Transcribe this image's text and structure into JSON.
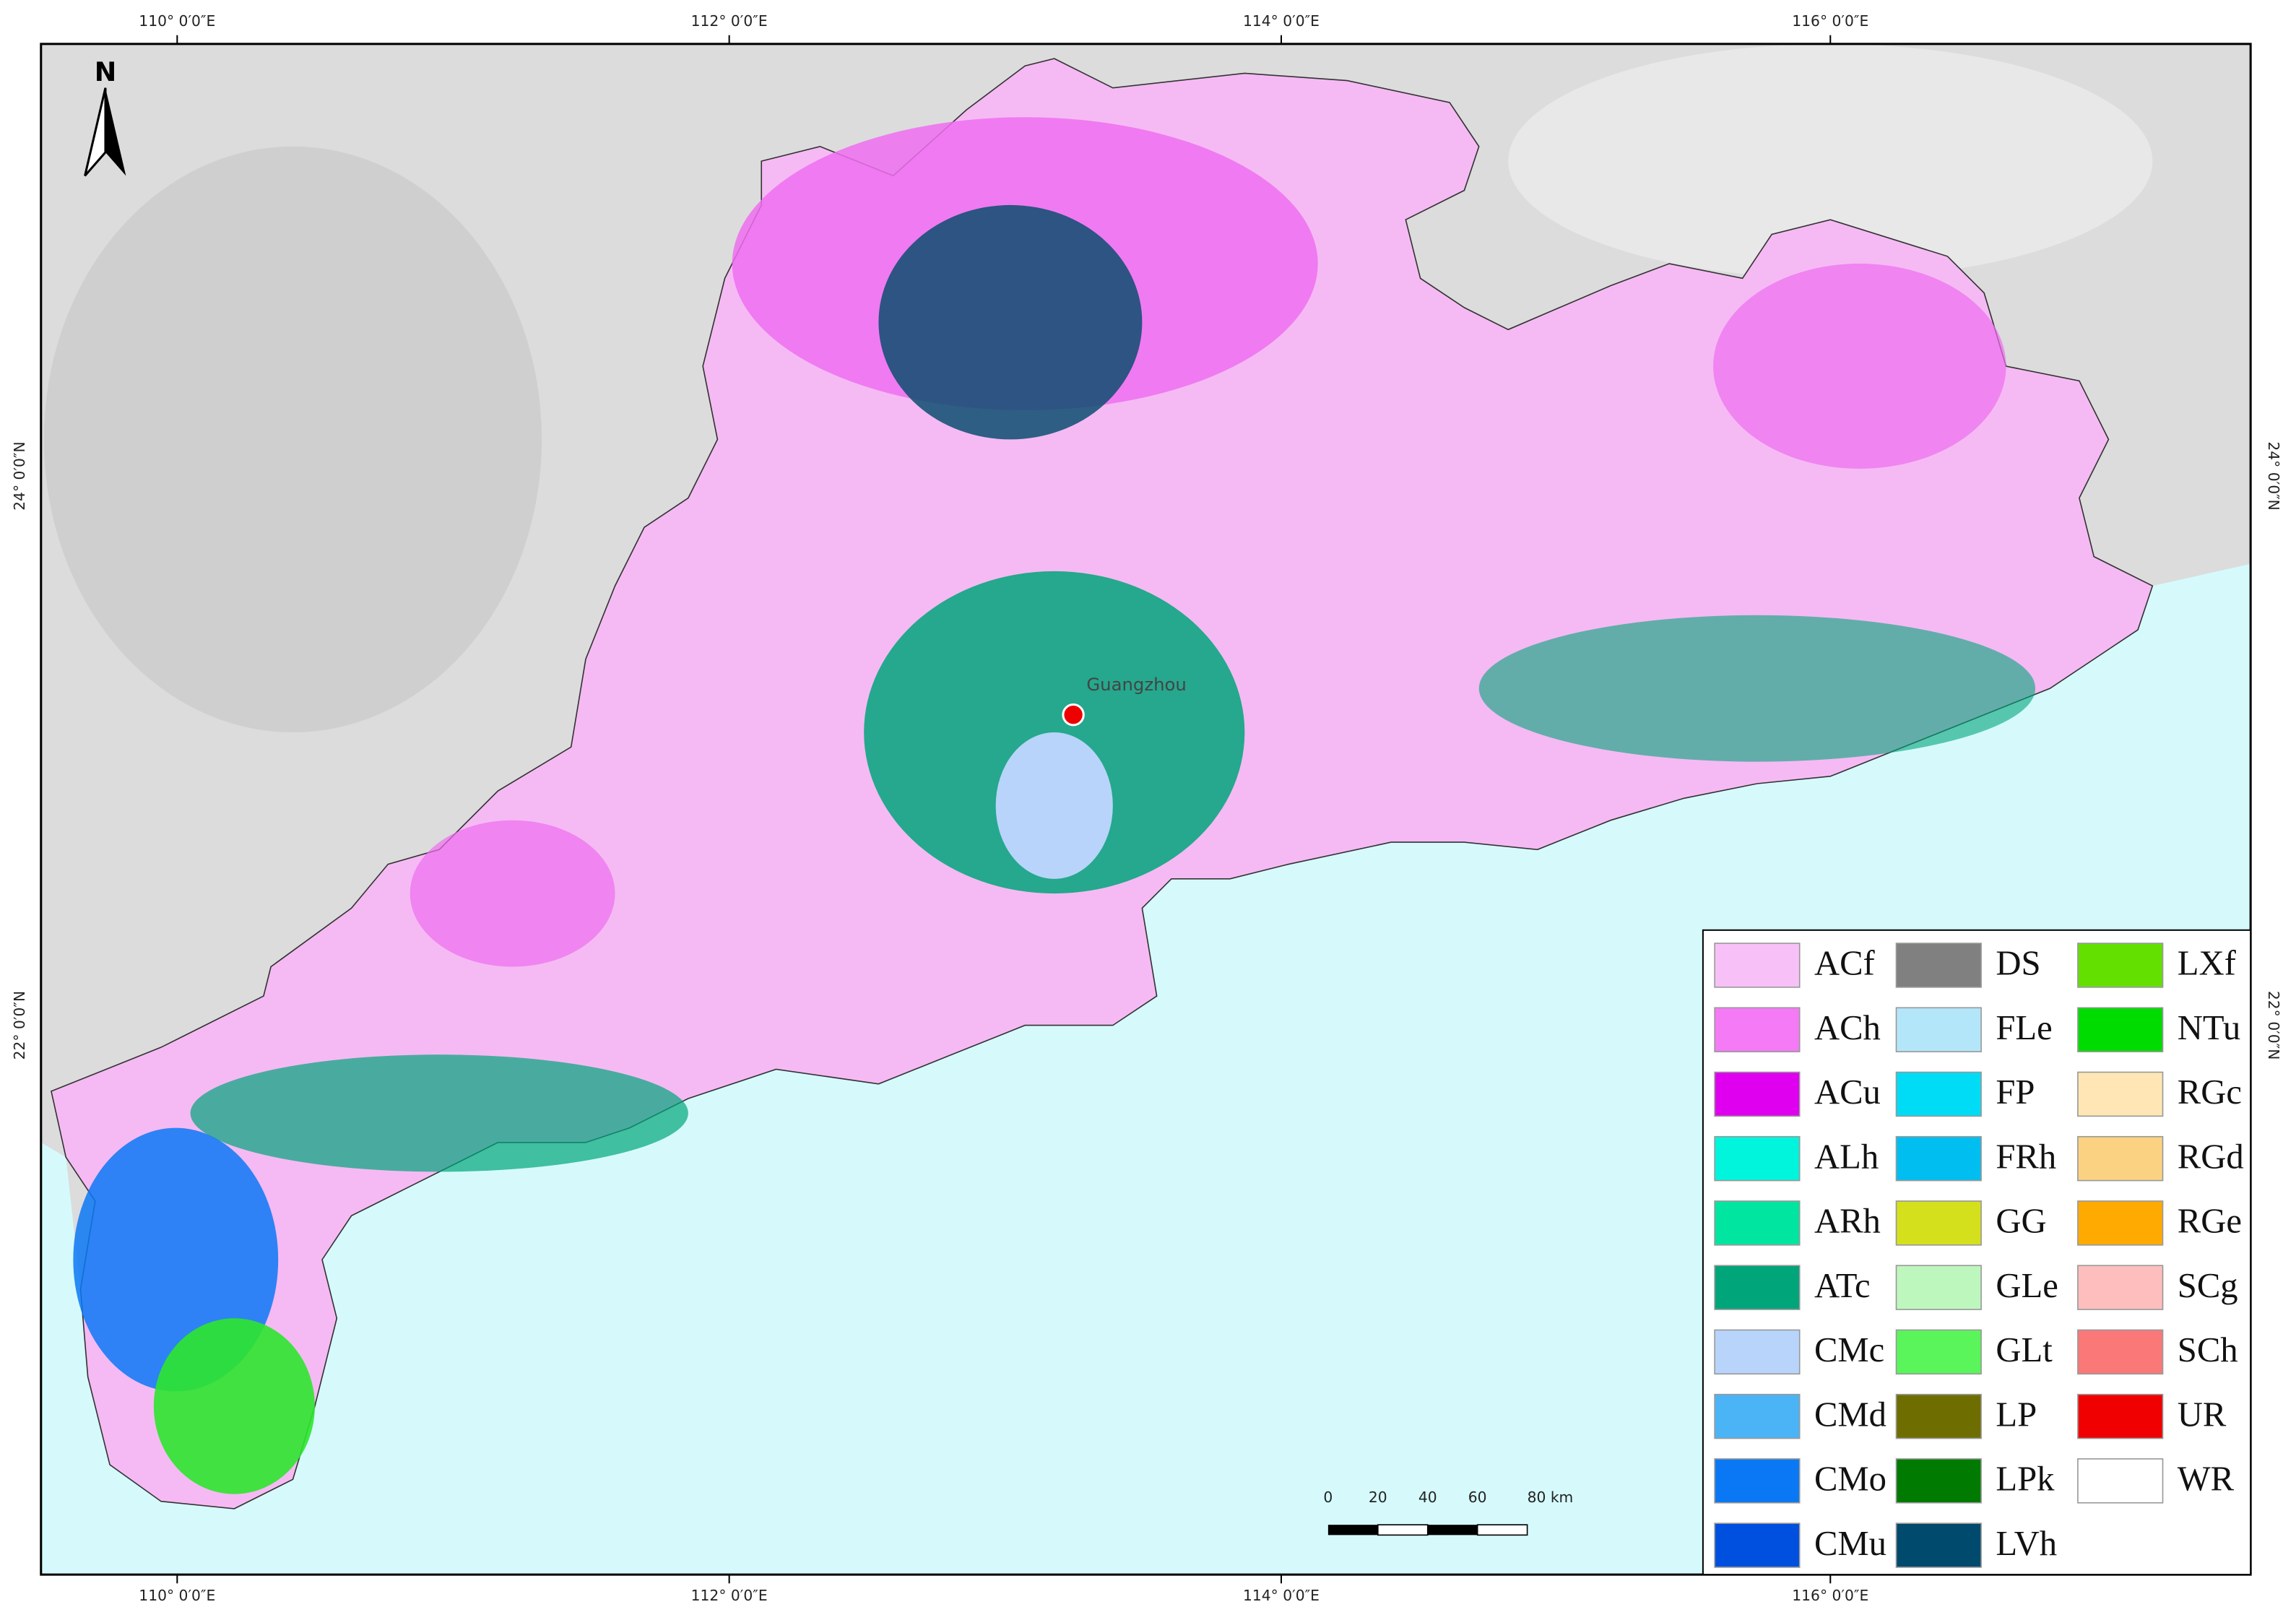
{
  "map": {
    "graticule": {
      "top": [
        "110° 0′0″E",
        "112° 0′0″E",
        "114° 0′0″E",
        "116° 0′0″E"
      ],
      "bottom": [
        "110° 0′0″E",
        "112° 0′0″E",
        "114° 0′0″E",
        "116° 0′0″E"
      ],
      "left": [
        "24° 0′0″N",
        "22° 0′0″N"
      ],
      "right": [
        "24° 0′0″N",
        "22° 0′0″N"
      ]
    },
    "north_arrow": "N",
    "city": "Guangzhou",
    "scale_bar": [
      "0",
      "20",
      "40",
      "60",
      "80 km"
    ],
    "legend": [
      {
        "label": "ACf",
        "color": "#f7c1f7"
      },
      {
        "label": "ACh",
        "color": "#f57af5"
      },
      {
        "label": "ACu",
        "color": "#e000f0"
      },
      {
        "label": "ALh",
        "color": "#00f5dc"
      },
      {
        "label": "ARh",
        "color": "#00e5a0"
      },
      {
        "label": "ATc",
        "color": "#00a57a"
      },
      {
        "label": "CMc",
        "color": "#b8d4fa"
      },
      {
        "label": "CMd",
        "color": "#4ab4f7"
      },
      {
        "label": "CMo",
        "color": "#0a78f5"
      },
      {
        "label": "CMu",
        "color": "#0050e0"
      },
      {
        "label": "DS",
        "color": "#808080"
      },
      {
        "label": "FLe",
        "color": "#b4e6fa"
      },
      {
        "label": "FP",
        "color": "#00dcf5"
      },
      {
        "label": "FRh",
        "color": "#00bef0"
      },
      {
        "label": "GG",
        "color": "#d4e01c"
      },
      {
        "label": "GLe",
        "color": "#bef7be"
      },
      {
        "label": "GLt",
        "color": "#5af55a"
      },
      {
        "label": "LP",
        "color": "#6e6e00"
      },
      {
        "label": "LPk",
        "color": "#007a00"
      },
      {
        "label": "LVh",
        "color": "#004a6e"
      },
      {
        "label": "LXf",
        "color": "#64e000"
      },
      {
        "label": "NTu",
        "color": "#00dc00"
      },
      {
        "label": "RGc",
        "color": "#ffe6b4"
      },
      {
        "label": "RGd",
        "color": "#fad282"
      },
      {
        "label": "RGe",
        "color": "#ffaa00"
      },
      {
        "label": "SCg",
        "color": "#ffbebe"
      },
      {
        "label": "SCh",
        "color": "#fa7878"
      },
      {
        "label": "UR",
        "color": "#f00000"
      },
      {
        "label": "WR",
        "color": "#ffffff"
      }
    ]
  }
}
